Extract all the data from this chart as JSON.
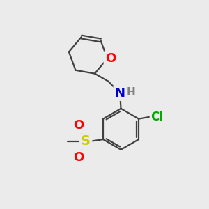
{
  "bg_color": "#ebebeb",
  "bond_color": "#404040",
  "bond_width": 1.6,
  "atom_colors": {
    "O": "#ff0000",
    "N": "#0000cc",
    "Cl": "#00aa00",
    "S": "#cccc00",
    "H": "#808080"
  },
  "figsize": [
    3.0,
    3.0
  ],
  "dpi": 100,
  "xlim": [
    0,
    10
  ],
  "ylim": [
    0,
    10
  ]
}
